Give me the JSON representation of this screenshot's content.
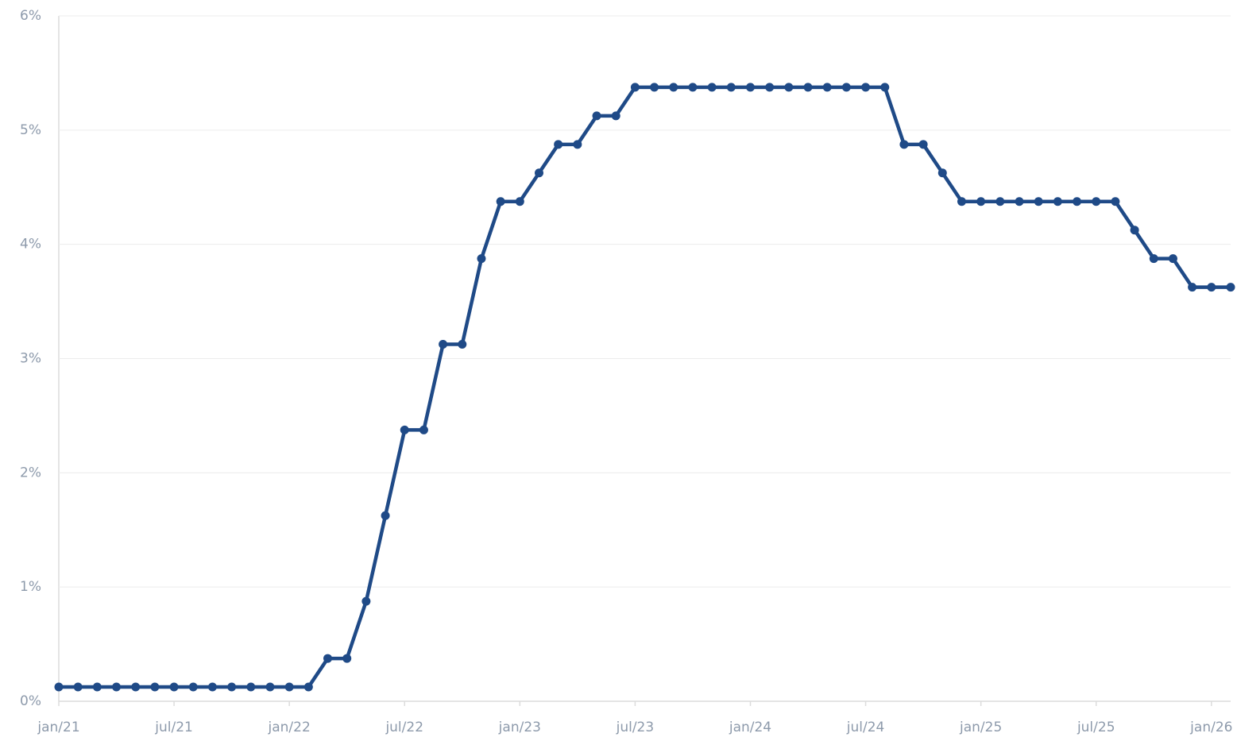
{
  "chart_data": {
    "type": "line",
    "categories": [
      "jan/21",
      null,
      null,
      null,
      null,
      null,
      "jul/21",
      null,
      null,
      null,
      null,
      null,
      "jan/22",
      null,
      null,
      null,
      null,
      null,
      "jul/22",
      null,
      null,
      null,
      null,
      null,
      "jan/23",
      null,
      null,
      null,
      null,
      null,
      "jul/23",
      null,
      null,
      null,
      null,
      null,
      "jan/24",
      null,
      null,
      null,
      null,
      null,
      "jul/24",
      null,
      null,
      null,
      null,
      null,
      "jan/25",
      null,
      null,
      null,
      null,
      null,
      "jul/25",
      null,
      null,
      null,
      null,
      null,
      "jan/26",
      null
    ],
    "series": [
      {
        "color": "#1f4a87",
        "values": [
          0.125,
          0.125,
          0.125,
          0.125,
          0.125,
          0.125,
          0.125,
          0.125,
          0.125,
          0.125,
          0.125,
          0.125,
          0.125,
          0.125,
          0.375,
          0.375,
          0.875,
          1.625,
          2.375,
          2.375,
          3.125,
          3.125,
          3.875,
          4.375,
          4.375,
          4.625,
          4.875,
          4.875,
          5.125,
          5.125,
          5.375,
          5.375,
          5.375,
          5.375,
          5.375,
          5.375,
          5.375,
          5.375,
          5.375,
          5.375,
          5.375,
          5.375,
          5.375,
          5.375,
          4.875,
          4.875,
          4.625,
          4.375,
          4.375,
          4.375,
          4.375,
          4.375,
          4.375,
          4.375,
          4.375,
          4.375,
          4.125,
          3.875,
          3.875,
          3.625,
          3.625,
          3.625
        ]
      }
    ],
    "ylim": [
      0,
      6
    ],
    "yticks": [
      {
        "value": 0,
        "label": "0%"
      },
      {
        "value": 1,
        "label": "1%"
      },
      {
        "value": 2,
        "label": "2%"
      },
      {
        "value": 3,
        "label": "3%"
      },
      {
        "value": 4,
        "label": "4%"
      },
      {
        "value": 5,
        "label": "5%"
      },
      {
        "value": 6,
        "label": "6%"
      }
    ],
    "grid": true
  }
}
